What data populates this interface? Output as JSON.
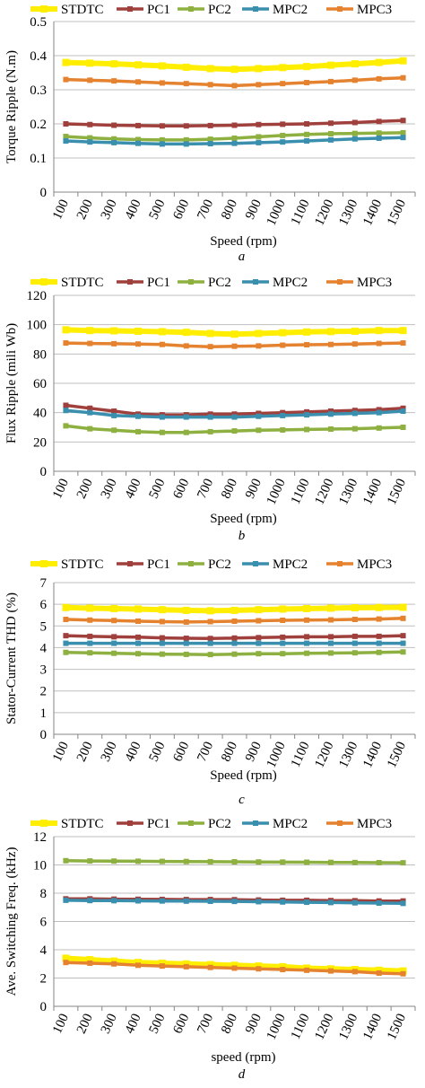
{
  "colors": {
    "STDTC": "#ffee00",
    "PC1": "#a0403c",
    "PC2": "#8db040",
    "MPC2": "#3b8fae",
    "MPC3": "#e5822f"
  },
  "chart_data": [
    {
      "type": "line",
      "caption": "a",
      "ylabel": "Torque Ripple (N.m)",
      "xlabel": "Speed (rpm)",
      "ylim": [
        0,
        0.5
      ],
      "yticks": [
        "0",
        "0.1",
        "0.2",
        "0.3",
        "0.4",
        "0.5"
      ],
      "yticks_values": [
        0,
        0.1,
        0.2,
        0.3,
        0.4,
        0.5
      ],
      "categories": [
        "100",
        "200",
        "300",
        "400",
        "500",
        "600",
        "700",
        "800",
        "900",
        "1000",
        "1100",
        "1200",
        "1300",
        "1400",
        "1500"
      ],
      "grid": "horizontal",
      "legend": "top",
      "series": [
        {
          "name": "STDTC",
          "values": [
            0.38,
            0.378,
            0.376,
            0.373,
            0.37,
            0.366,
            0.362,
            0.36,
            0.362,
            0.365,
            0.368,
            0.372,
            0.376,
            0.38,
            0.385
          ]
        },
        {
          "name": "PC1",
          "values": [
            0.2,
            0.198,
            0.196,
            0.195,
            0.194,
            0.194,
            0.195,
            0.196,
            0.198,
            0.199,
            0.2,
            0.202,
            0.204,
            0.207,
            0.21
          ]
        },
        {
          "name": "PC2",
          "values": [
            0.163,
            0.159,
            0.156,
            0.154,
            0.153,
            0.153,
            0.155,
            0.158,
            0.162,
            0.166,
            0.169,
            0.171,
            0.172,
            0.173,
            0.174
          ]
        },
        {
          "name": "MPC2",
          "values": [
            0.15,
            0.147,
            0.145,
            0.143,
            0.141,
            0.141,
            0.142,
            0.143,
            0.145,
            0.147,
            0.15,
            0.153,
            0.156,
            0.158,
            0.16
          ]
        },
        {
          "name": "MPC3",
          "values": [
            0.33,
            0.328,
            0.326,
            0.323,
            0.32,
            0.318,
            0.315,
            0.312,
            0.315,
            0.318,
            0.321,
            0.324,
            0.328,
            0.332,
            0.335
          ]
        }
      ]
    },
    {
      "type": "line",
      "caption": "b",
      "ylabel": "Flux Ripple (mili Wb)",
      "xlabel": "Speed (rpm)",
      "ylim": [
        0,
        120
      ],
      "yticks": [
        "0",
        "20",
        "40",
        "60",
        "80",
        "100",
        "120"
      ],
      "yticks_values": [
        0,
        20,
        40,
        60,
        80,
        100,
        120
      ],
      "categories": [
        "100",
        "200",
        "300",
        "400",
        "500",
        "600",
        "700",
        "800",
        "900",
        "1000",
        "1100",
        "1200",
        "1300",
        "1400",
        "1500"
      ],
      "grid": "horizontal",
      "legend": "top",
      "series": [
        {
          "name": "STDTC",
          "values": [
            96.5,
            96,
            95.8,
            95.5,
            95.2,
            94.8,
            94,
            93.5,
            94,
            94.5,
            95,
            95.3,
            95.5,
            96,
            96
          ]
        },
        {
          "name": "PC1",
          "values": [
            45,
            43,
            41,
            39,
            38.5,
            38.5,
            39,
            39,
            39.5,
            40,
            40.5,
            41,
            41.5,
            42,
            43
          ]
        },
        {
          "name": "PC2",
          "values": [
            31,
            29,
            28,
            27,
            26.5,
            26.5,
            27,
            27.5,
            28,
            28.2,
            28.5,
            28.8,
            29,
            29.5,
            30
          ]
        },
        {
          "name": "MPC2",
          "values": [
            41.5,
            40,
            38,
            37.5,
            37,
            37,
            37,
            37,
            37.5,
            38,
            38.5,
            39,
            39.5,
            40,
            41
          ]
        },
        {
          "name": "MPC3",
          "values": [
            87.5,
            87.2,
            87,
            86.8,
            86.5,
            85.5,
            85,
            85.3,
            85.5,
            86,
            86.3,
            86.5,
            86.8,
            87.2,
            87.5
          ]
        }
      ]
    },
    {
      "type": "line",
      "caption": "c",
      "ylabel": "Stator-Current THD (%)",
      "xlabel": "Speed (rpm)",
      "ylim": [
        0,
        7
      ],
      "yticks": [
        "0",
        "1",
        "2",
        "3",
        "4",
        "5",
        "6",
        "7"
      ],
      "yticks_values": [
        0,
        1,
        2,
        3,
        4,
        5,
        6,
        7
      ],
      "categories": [
        "100",
        "200",
        "300",
        "400",
        "500",
        "600",
        "700",
        "800",
        "900",
        "1000",
        "1100",
        "1200",
        "1300",
        "1400",
        "1500"
      ],
      "grid": "horizontal",
      "legend": "top",
      "series": [
        {
          "name": "STDTC",
          "values": [
            5.85,
            5.82,
            5.8,
            5.78,
            5.75,
            5.72,
            5.7,
            5.72,
            5.75,
            5.78,
            5.8,
            5.82,
            5.84,
            5.85,
            5.86
          ]
        },
        {
          "name": "PC1",
          "values": [
            4.55,
            4.52,
            4.5,
            4.48,
            4.45,
            4.43,
            4.42,
            4.44,
            4.46,
            4.48,
            4.5,
            4.5,
            4.52,
            4.52,
            4.55
          ]
        },
        {
          "name": "PC2",
          "values": [
            3.78,
            3.76,
            3.74,
            3.72,
            3.7,
            3.69,
            3.68,
            3.7,
            3.72,
            3.72,
            3.74,
            3.75,
            3.76,
            3.78,
            3.8
          ]
        },
        {
          "name": "MPC2",
          "values": [
            4.2,
            4.2,
            4.2,
            4.2,
            4.2,
            4.2,
            4.2,
            4.2,
            4.2,
            4.2,
            4.2,
            4.2,
            4.2,
            4.2,
            4.2
          ]
        },
        {
          "name": "MPC3",
          "values": [
            5.3,
            5.27,
            5.25,
            5.22,
            5.2,
            5.18,
            5.2,
            5.22,
            5.24,
            5.26,
            5.27,
            5.28,
            5.3,
            5.32,
            5.35
          ]
        }
      ]
    },
    {
      "type": "line",
      "caption": "d",
      "ylabel": "Ave. Switching Freq. (kHz)",
      "xlabel": "speed (rpm)",
      "ylim": [
        0,
        12
      ],
      "yticks": [
        "0",
        "2",
        "4",
        "6",
        "8",
        "10",
        "12"
      ],
      "yticks_values": [
        0,
        2,
        4,
        6,
        8,
        10,
        12
      ],
      "categories": [
        "100",
        "200",
        "300",
        "400",
        "500",
        "600",
        "700",
        "800",
        "900",
        "1000",
        "1100",
        "1200",
        "1300",
        "1400",
        "1500"
      ],
      "grid": "horizontal",
      "legend": "top",
      "series": [
        {
          "name": "STDTC",
          "values": [
            3.4,
            3.3,
            3.2,
            3.1,
            3.05,
            3.0,
            2.95,
            2.9,
            2.85,
            2.8,
            2.7,
            2.65,
            2.6,
            2.55,
            2.5
          ]
        },
        {
          "name": "PC1",
          "values": [
            7.6,
            7.6,
            7.58,
            7.57,
            7.56,
            7.55,
            7.55,
            7.54,
            7.52,
            7.5,
            7.5,
            7.48,
            7.47,
            7.45,
            7.45
          ]
        },
        {
          "name": "PC2",
          "values": [
            10.3,
            10.28,
            10.27,
            10.26,
            10.25,
            10.24,
            10.23,
            10.22,
            10.21,
            10.2,
            10.19,
            10.18,
            10.17,
            10.16,
            10.15
          ]
        },
        {
          "name": "MPC2",
          "values": [
            7.5,
            7.48,
            7.47,
            7.46,
            7.45,
            7.44,
            7.43,
            7.42,
            7.4,
            7.38,
            7.36,
            7.34,
            7.32,
            7.3,
            7.28
          ]
        },
        {
          "name": "MPC3",
          "values": [
            3.1,
            3.05,
            3.0,
            2.9,
            2.85,
            2.8,
            2.75,
            2.7,
            2.65,
            2.6,
            2.55,
            2.5,
            2.45,
            2.35,
            2.3
          ]
        }
      ]
    }
  ]
}
